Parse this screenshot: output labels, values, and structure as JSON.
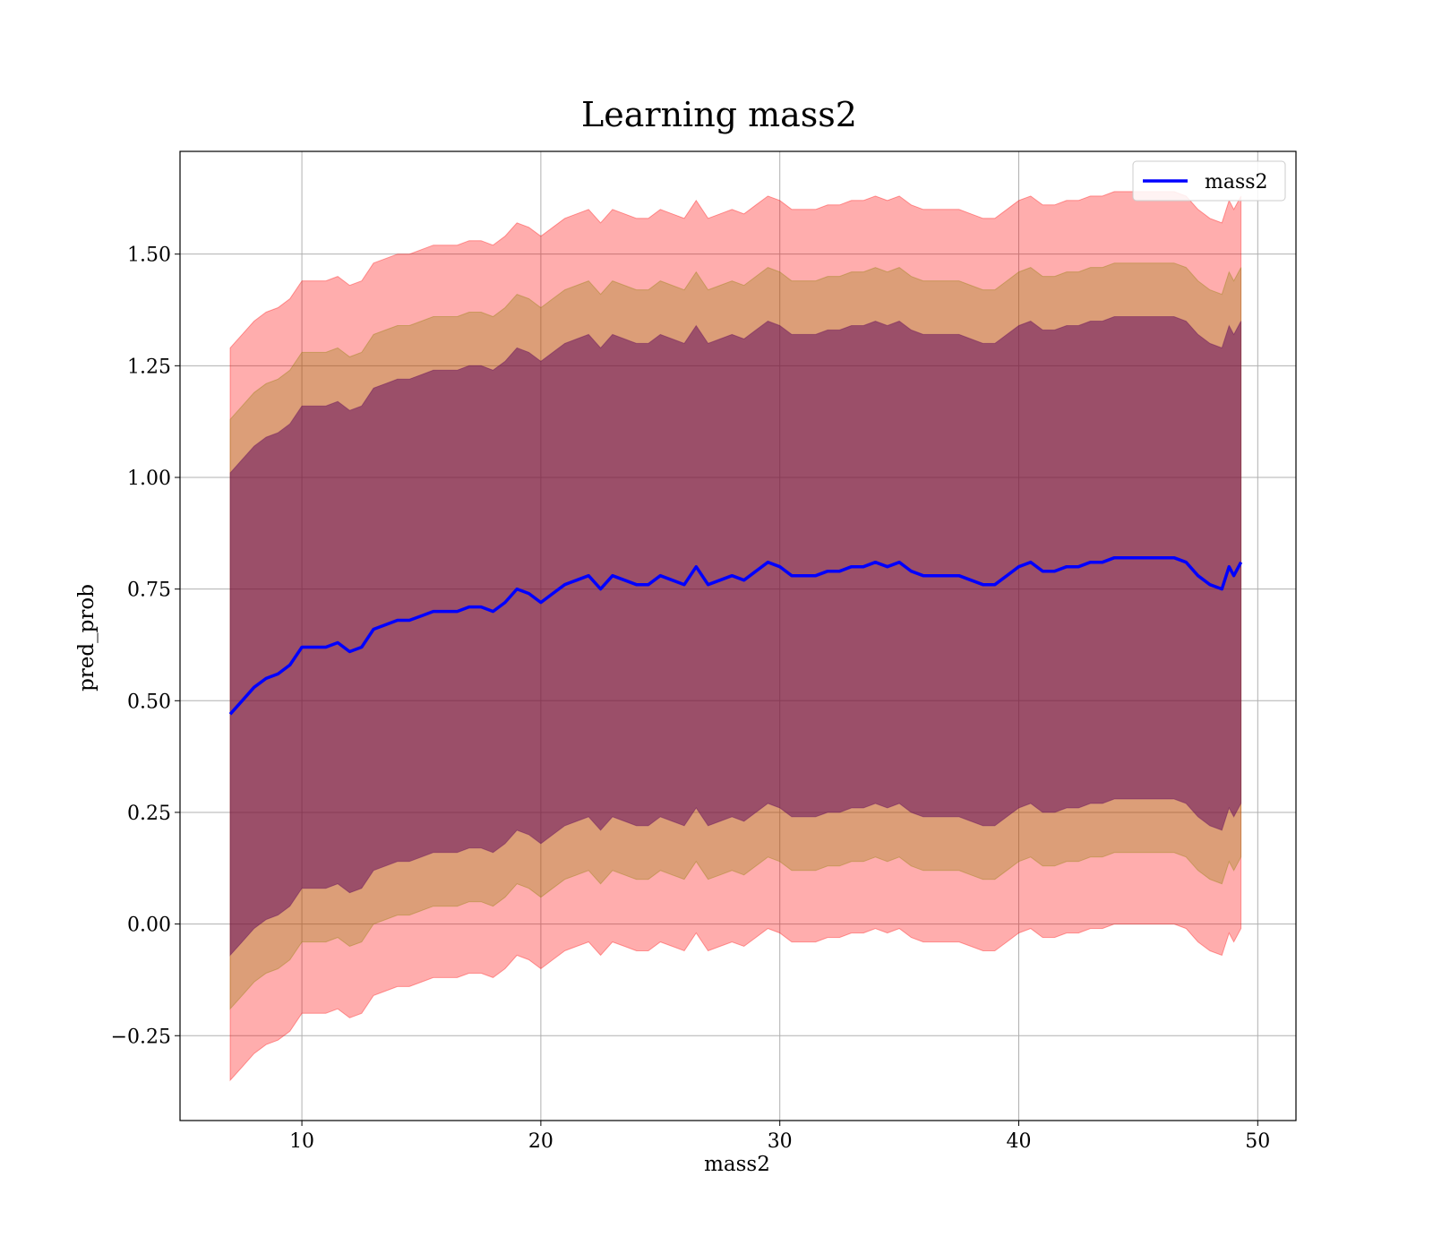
{
  "chart_data": {
    "type": "line",
    "title": "Learning mass2",
    "xlabel": "mass2",
    "ylabel": "pred_prob",
    "xlim": [
      4.9,
      51.6
    ],
    "ylim": [
      -0.44,
      1.73
    ],
    "xticks": [
      10,
      20,
      30,
      40,
      50
    ],
    "xtick_labels": [
      "10",
      "20",
      "30",
      "40",
      "50"
    ],
    "yticks": [
      -0.25,
      0.0,
      0.25,
      0.5,
      0.75,
      1.0,
      1.25,
      1.5
    ],
    "ytick_labels": [
      "−0.25",
      "0.00",
      "0.25",
      "0.50",
      "0.75",
      "1.00",
      "1.25",
      "1.50"
    ],
    "grid": true,
    "legend_position": "top-right",
    "colors": {
      "mean_line": "#0000ff",
      "band_outer": "#ff0000",
      "band_middle": "#8b7d00",
      "band_inner": "#5a005a"
    },
    "x": [
      7.0,
      7.5,
      8.0,
      8.5,
      9.0,
      9.5,
      10.0,
      10.5,
      11.0,
      11.5,
      12.0,
      12.5,
      13.0,
      13.5,
      14.0,
      14.5,
      15.0,
      15.5,
      16.0,
      16.5,
      17.0,
      17.5,
      18.0,
      18.5,
      19.0,
      19.5,
      20.0,
      20.5,
      21.0,
      21.5,
      22.0,
      22.5,
      23.0,
      23.5,
      24.0,
      24.5,
      25.0,
      25.5,
      26.0,
      26.5,
      27.0,
      27.5,
      28.0,
      28.5,
      29.0,
      29.5,
      30.0,
      30.5,
      31.0,
      31.5,
      32.0,
      32.5,
      33.0,
      33.5,
      34.0,
      34.5,
      35.0,
      35.5,
      36.0,
      36.5,
      37.0,
      37.5,
      38.0,
      38.5,
      39.0,
      39.5,
      40.0,
      40.5,
      41.0,
      41.5,
      42.0,
      42.5,
      43.0,
      43.5,
      44.0,
      44.5,
      45.0,
      45.5,
      46.0,
      46.5,
      47.0,
      47.5,
      48.0,
      48.5,
      48.8,
      49.0,
      49.3
    ],
    "series": [
      {
        "name": "mass2",
        "values": [
          0.47,
          0.5,
          0.53,
          0.55,
          0.56,
          0.58,
          0.62,
          0.62,
          0.62,
          0.63,
          0.61,
          0.62,
          0.66,
          0.67,
          0.68,
          0.68,
          0.69,
          0.7,
          0.7,
          0.7,
          0.71,
          0.71,
          0.7,
          0.72,
          0.75,
          0.74,
          0.72,
          0.74,
          0.76,
          0.77,
          0.78,
          0.75,
          0.78,
          0.77,
          0.76,
          0.76,
          0.78,
          0.77,
          0.76,
          0.8,
          0.76,
          0.77,
          0.78,
          0.77,
          0.79,
          0.81,
          0.8,
          0.78,
          0.78,
          0.78,
          0.79,
          0.79,
          0.8,
          0.8,
          0.81,
          0.8,
          0.81,
          0.79,
          0.78,
          0.78,
          0.78,
          0.78,
          0.77,
          0.76,
          0.76,
          0.78,
          0.8,
          0.81,
          0.79,
          0.79,
          0.8,
          0.8,
          0.81,
          0.81,
          0.82,
          0.82,
          0.82,
          0.82,
          0.82,
          0.82,
          0.81,
          0.78,
          0.76,
          0.75,
          0.8,
          0.78,
          0.81
        ]
      }
    ]
  }
}
